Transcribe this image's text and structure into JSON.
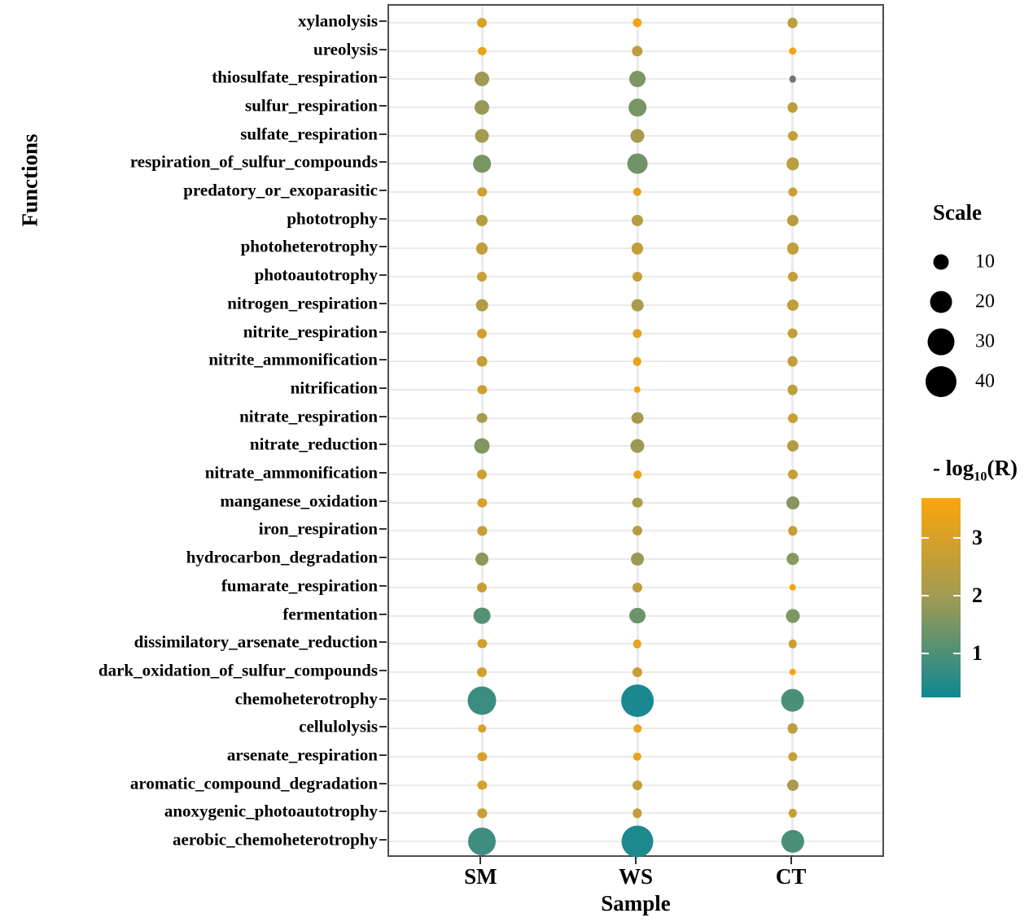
{
  "figure": {
    "y_axis_title": "Functions",
    "x_axis_title": "Sample",
    "size_legend": {
      "title": "Scale",
      "values": [
        10,
        20,
        30,
        40
      ]
    },
    "color_legend": {
      "title_prefix": "- log",
      "title_sub": "10",
      "title_suffix": "(R)",
      "ticks": [
        3,
        2,
        1
      ],
      "range": [
        0.23,
        3.7
      ],
      "bottom_color": "#0f8793",
      "mid_color": "#a29b52",
      "mid_value": 2.0,
      "top_color": "#fca50a",
      "na_color": "#757575"
    }
  },
  "chart_data": {
    "type": "bubble",
    "title": "",
    "xlabel": "Sample",
    "ylabel": "Functions",
    "size_label": "Scale",
    "size_legend_values": [
      10,
      20,
      30,
      40
    ],
    "color_label": "-log10(R)",
    "color_range": [
      0.23,
      3.7
    ],
    "x_categories": [
      "SM",
      "WS",
      "CT"
    ],
    "grid": true,
    "note": "scale = bubble size value (estimated); logr = -log10(R) color value (estimated); null logr = NA (gray dot)",
    "rows": [
      {
        "function": "xylanolysis",
        "scale": [
          4,
          3.5,
          4.5
        ],
        "logr": [
          3.0,
          3.5,
          2.5
        ]
      },
      {
        "function": "ureolysis",
        "scale": [
          3,
          5,
          2.5
        ],
        "logr": [
          3.3,
          2.5,
          3.55
        ]
      },
      {
        "function": "thiosulfate_respiration",
        "scale": [
          9,
          11,
          2
        ],
        "logr": [
          1.95,
          1.55,
          null
        ]
      },
      {
        "function": "sulfur_respiration",
        "scale": [
          9,
          13,
          4.5
        ],
        "logr": [
          1.85,
          1.5,
          2.5
        ]
      },
      {
        "function": "sulfate_respiration",
        "scale": [
          8,
          8,
          4
        ],
        "logr": [
          2.0,
          2.1,
          2.65
        ]
      },
      {
        "function": "respiration_of_sulfur_compounds",
        "scale": [
          13,
          17,
          6.5
        ],
        "logr": [
          1.5,
          1.4,
          2.45
        ]
      },
      {
        "function": "predatory_or_exoparasitic",
        "scale": [
          3.5,
          3,
          3.5
        ],
        "logr": [
          2.8,
          3.2,
          2.7
        ]
      },
      {
        "function": "phototrophy",
        "scale": [
          5.5,
          5.5,
          5.5
        ],
        "logr": [
          2.35,
          2.35,
          2.4
        ]
      },
      {
        "function": "photoheterotrophy",
        "scale": [
          5.5,
          5.5,
          5.5
        ],
        "logr": [
          2.6,
          2.6,
          2.6
        ]
      },
      {
        "function": "photoautotrophy",
        "scale": [
          4,
          4,
          4
        ],
        "logr": [
          2.7,
          2.65,
          2.65
        ]
      },
      {
        "function": "nitrogen_respiration",
        "scale": [
          6,
          6,
          5.5
        ],
        "logr": [
          2.3,
          2.15,
          2.55
        ]
      },
      {
        "function": "nitrite_respiration",
        "scale": [
          4,
          3.5,
          4.5
        ],
        "logr": [
          2.85,
          3.25,
          2.6
        ]
      },
      {
        "function": "nitrite_ammonification",
        "scale": [
          4.5,
          3,
          4.5
        ],
        "logr": [
          2.65,
          3.35,
          2.55
        ]
      },
      {
        "function": "nitrification",
        "scale": [
          3.5,
          2,
          4.5
        ],
        "logr": [
          2.8,
          3.6,
          2.5
        ]
      },
      {
        "function": "nitrate_respiration",
        "scale": [
          4.5,
          6,
          4
        ],
        "logr": [
          2.1,
          2.1,
          2.7
        ]
      },
      {
        "function": "nitrate_reduction",
        "scale": [
          10,
          8,
          5.5
        ],
        "logr": [
          1.6,
          1.9,
          2.3
        ]
      },
      {
        "function": "nitrate_ammonification",
        "scale": [
          4,
          2.5,
          4
        ],
        "logr": [
          2.85,
          3.4,
          2.7
        ]
      },
      {
        "function": "manganese_oxidation",
        "scale": [
          3.5,
          4.5,
          7
        ],
        "logr": [
          2.95,
          2.15,
          1.65
        ]
      },
      {
        "function": "iron_respiration",
        "scale": [
          3.5,
          4,
          3.5
        ],
        "logr": [
          2.7,
          2.4,
          2.65
        ]
      },
      {
        "function": "hydrocarbon_degradation",
        "scale": [
          7,
          7,
          6.5
        ],
        "logr": [
          1.75,
          1.9,
          1.7
        ]
      },
      {
        "function": "fumarate_respiration",
        "scale": [
          4,
          4,
          2
        ],
        "logr": [
          2.7,
          2.45,
          3.6
        ]
      },
      {
        "function": "fermentation",
        "scale": [
          12,
          11,
          8
        ],
        "logr": [
          1.1,
          1.35,
          1.55
        ]
      },
      {
        "function": "dissimilatory_arsenate_reduction",
        "scale": [
          3.5,
          3,
          3
        ],
        "logr": [
          2.85,
          3.3,
          2.8
        ]
      },
      {
        "function": "dark_oxidation_of_sulfur_compounds",
        "scale": [
          4,
          4,
          2
        ],
        "logr": [
          2.85,
          2.7,
          3.6
        ]
      },
      {
        "function": "chemoheterotrophy",
        "scale": [
          34,
          44,
          23
        ],
        "logr": [
          0.75,
          0.35,
          0.95
        ]
      },
      {
        "function": "cellulolysis",
        "scale": [
          2.5,
          2.5,
          4.5
        ],
        "logr": [
          3.0,
          3.4,
          2.5
        ]
      },
      {
        "function": "arsenate_respiration",
        "scale": [
          3.5,
          3,
          3.5
        ],
        "logr": [
          2.95,
          3.3,
          2.65
        ]
      },
      {
        "function": "aromatic_compound_degradation",
        "scale": [
          3.5,
          4,
          5.5
        ],
        "logr": [
          3.0,
          2.65,
          2.15
        ]
      },
      {
        "function": "anoxygenic_photoautotrophy",
        "scale": [
          3.5,
          3.5,
          3
        ],
        "logr": [
          2.7,
          2.65,
          2.7
        ]
      },
      {
        "function": "aerobic_chemoheterotrophy",
        "scale": [
          32,
          42,
          22
        ],
        "logr": [
          0.8,
          0.4,
          0.95
        ]
      }
    ]
  }
}
